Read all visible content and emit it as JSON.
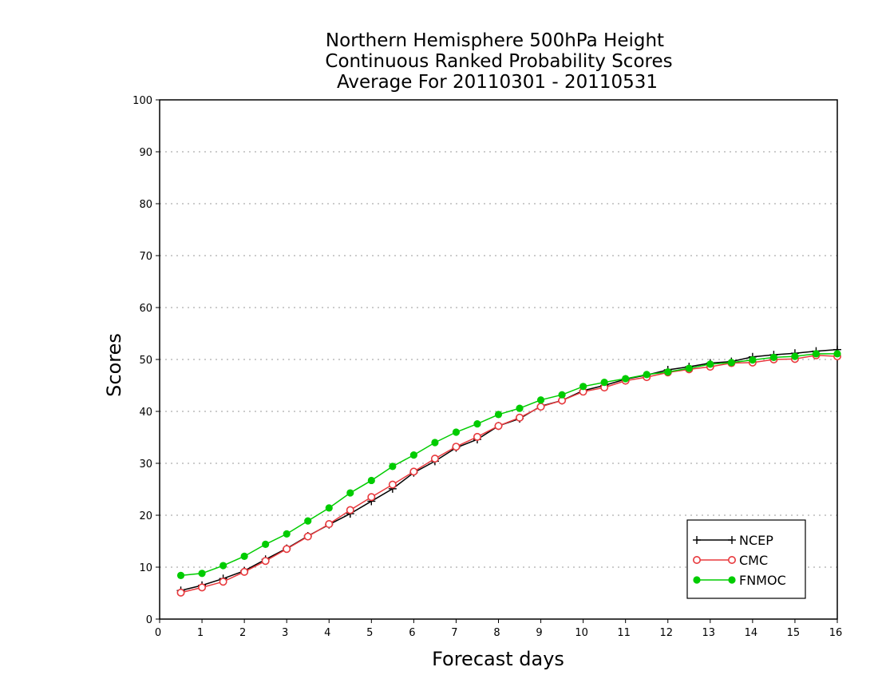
{
  "chart_data": {
    "type": "line",
    "title": [
      "Northern Hemisphere 500hPa Height",
      "Continuous Ranked Probability Scores",
      "Average For 20110301 - 20110531"
    ],
    "xlabel": "Forecast days",
    "ylabel": "Scores",
    "xlim": [
      0,
      16
    ],
    "ylim": [
      0,
      100
    ],
    "xticks": [
      "0",
      "1",
      "2",
      "3",
      "4",
      "5",
      "6",
      "7",
      "8",
      "9",
      "10",
      "11",
      "12",
      "13",
      "14",
      "15",
      "16"
    ],
    "yticks": [
      "0",
      "10",
      "20",
      "30",
      "40",
      "50",
      "60",
      "70",
      "80",
      "90",
      "100"
    ],
    "grid": "horizontal dotted",
    "legend_position": "bottom-right",
    "x": [
      0.5,
      1,
      1.5,
      2,
      2.5,
      3,
      3.5,
      4,
      4.5,
      5,
      5.5,
      6,
      6.5,
      7,
      7.5,
      8,
      8.5,
      9,
      9.5,
      10,
      10.5,
      11,
      11.5,
      12,
      12.5,
      13,
      13.5,
      14,
      14.5,
      15,
      15.5,
      16
    ],
    "series": [
      {
        "name": "NCEP",
        "color": "#000000",
        "marker": "plus",
        "values": [
          5.5,
          6.5,
          7.8,
          9.3,
          11.5,
          13.6,
          16.0,
          18.2,
          20.3,
          22.7,
          25.1,
          28.2,
          30.4,
          33.0,
          34.6,
          37.2,
          38.6,
          41.0,
          42.1,
          44.0,
          45.0,
          46.2,
          47.0,
          48.0,
          48.6,
          49.3,
          49.6,
          50.5,
          50.9,
          51.2,
          51.6,
          51.9
        ]
      },
      {
        "name": "CMC",
        "color": "#e8393d",
        "marker": "open-circle",
        "values": [
          5.1,
          6.1,
          7.2,
          9.1,
          11.2,
          13.5,
          15.9,
          18.3,
          21.0,
          23.5,
          25.9,
          28.4,
          30.9,
          33.2,
          35.1,
          37.2,
          38.8,
          40.9,
          42.1,
          43.8,
          44.6,
          45.9,
          46.6,
          47.5,
          48.1,
          48.6,
          49.3,
          49.4,
          50.0,
          50.1,
          50.8,
          50.6
        ]
      },
      {
        "name": "FNMOC",
        "color": "#00cc00",
        "marker": "filled-circle",
        "values": [
          8.4,
          8.8,
          10.3,
          12.1,
          14.4,
          16.4,
          18.9,
          21.4,
          24.3,
          26.7,
          29.4,
          31.6,
          34.0,
          36.0,
          37.6,
          39.4,
          40.6,
          42.2,
          43.2,
          44.8,
          45.6,
          46.3,
          47.1,
          47.6,
          48.3,
          49.1,
          49.4,
          49.9,
          50.4,
          50.6,
          51.1,
          51.1
        ]
      }
    ]
  }
}
